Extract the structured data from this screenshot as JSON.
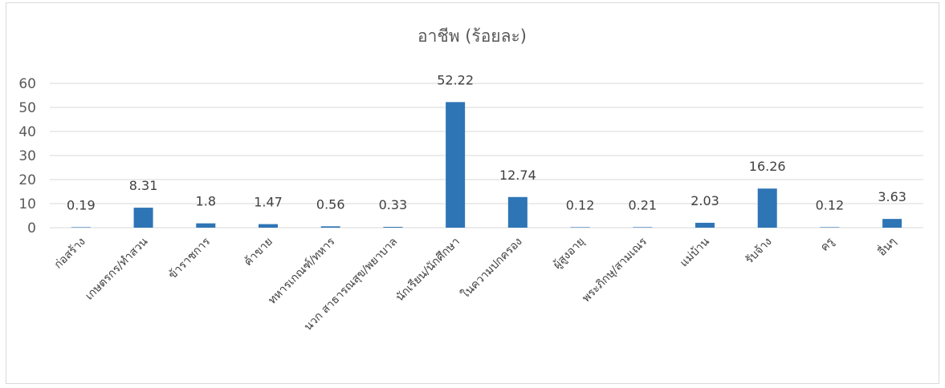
{
  "chart_data": {
    "type": "bar",
    "title": "อาชีพ (ร้อยละ)",
    "xlabel": "",
    "ylabel": "",
    "ylim": [
      0,
      60
    ],
    "yticks": [
      "0",
      "10",
      "20",
      "30",
      "40",
      "50",
      "60"
    ],
    "grid": true,
    "legend": "none",
    "bar_color": "#2e75b6",
    "categories": [
      "ก่อสร้าง",
      "เกษตรกร/ทำสวน",
      "ข้าราชการ",
      "ค้าขาย",
      "ทหารเกณฑ์/ทหาร",
      "นวก สาธารณสุข/พยาบาล",
      "นักเรียน/นักศึกษา",
      "ในความปกครอง",
      "ผู้สูงอายุ",
      "พระภิกษุ/สามเณร",
      "แม่บ้าน",
      "รับจ้าง",
      "ครู",
      "อื่นๆ"
    ],
    "values": [
      0.19,
      8.31,
      1.8,
      1.47,
      0.56,
      0.33,
      52.22,
      12.74,
      0.12,
      0.21,
      2.03,
      16.26,
      0.12,
      3.63
    ],
    "data_labels": [
      "0.19",
      "8.31",
      "1.8",
      "1.47",
      "0.56",
      "0.33",
      "52.22",
      "12.74",
      "0.12",
      "0.21",
      "2.03",
      "16.26",
      "0.12",
      "3.63"
    ]
  }
}
